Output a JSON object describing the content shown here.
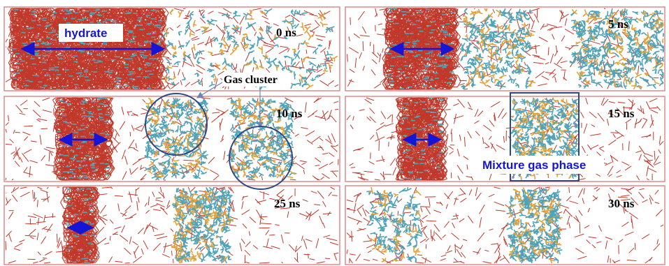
{
  "figure": {
    "panels": [
      {
        "id": "p0",
        "time_label": "0 ns"
      },
      {
        "id": "p5",
        "time_label": "5 ns"
      },
      {
        "id": "p10",
        "time_label": "10 ns"
      },
      {
        "id": "p15",
        "time_label": "15 ns"
      },
      {
        "id": "p25",
        "time_label": "25 ns"
      },
      {
        "id": "p30",
        "time_label": "30 ns"
      }
    ],
    "annotations": {
      "hydrate_label": "hydrate",
      "gas_cluster_label": "Gas cluster",
      "mixture_gas_label": "Mixture gas phase"
    },
    "colors": {
      "water_bonds": "#c0392b",
      "gas_carbon": "#4fa3b8",
      "gas_other": "#e3a23a",
      "frame": "#e08a8a",
      "annotation_blue": "#1515d6",
      "circle": "#2c4a8a"
    }
  }
}
